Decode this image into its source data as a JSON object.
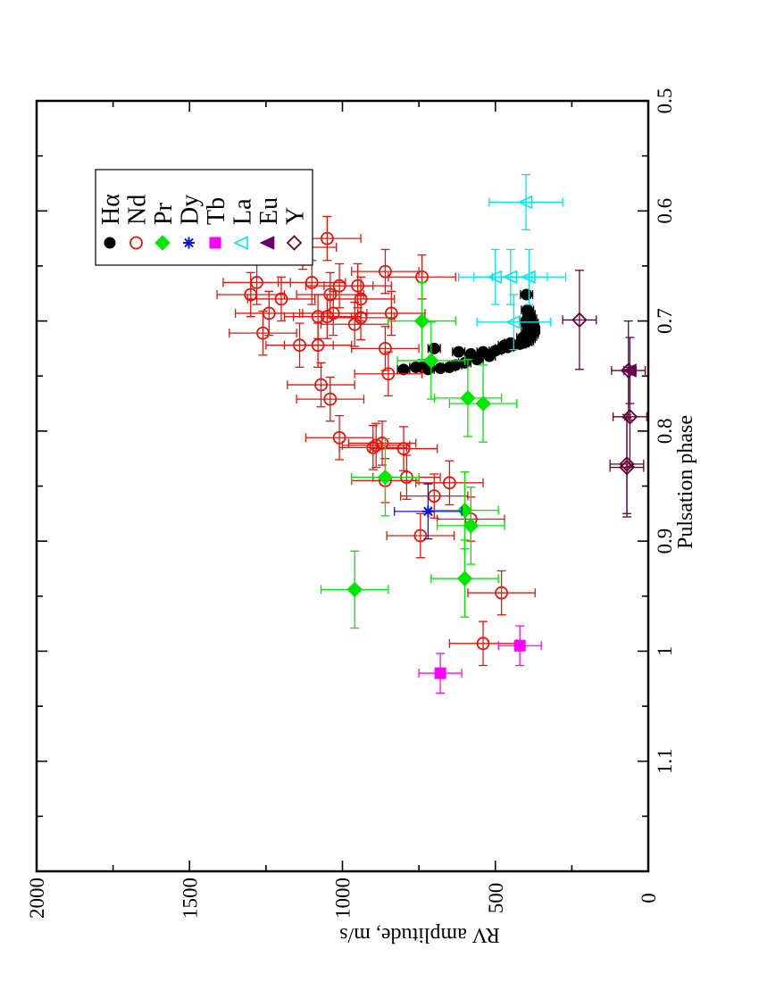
{
  "chart_data": {
    "type": "scatter",
    "title": "",
    "xlabel": "Pulsation phase",
    "ylabel": "RV amplitude, m/s",
    "xlim": [
      0.5,
      1.2
    ],
    "ylim": [
      0,
      2000
    ],
    "x_ticks": [
      "0.5",
      "0.6",
      "0.7",
      "0.8",
      "0.9",
      "1",
      "1.1"
    ],
    "y_ticks": [
      "0",
      "500",
      "1000",
      "1500",
      "2000"
    ],
    "orientation": "rotated 90 degrees counter-clockwise",
    "grid": false,
    "legend_position": "upper-right",
    "series": [
      {
        "name": "Hα",
        "marker": "filled-circle",
        "color": "#000000",
        "points": [
          [
            0.744,
            800
          ],
          [
            0.742,
            760
          ],
          [
            0.744,
            720
          ],
          [
            0.742,
            740
          ],
          [
            0.743,
            680
          ],
          [
            0.742,
            650
          ],
          [
            0.74,
            630
          ],
          [
            0.738,
            600
          ],
          [
            0.735,
            560
          ],
          [
            0.732,
            520
          ],
          [
            0.73,
            580
          ],
          [
            0.728,
            540
          ],
          [
            0.727,
            500
          ],
          [
            0.725,
            480
          ],
          [
            0.724,
            460
          ],
          [
            0.722,
            440
          ],
          [
            0.721,
            420
          ],
          [
            0.72,
            410
          ],
          [
            0.719,
            400
          ],
          [
            0.718,
            395
          ],
          [
            0.716,
            390
          ],
          [
            0.714,
            385
          ],
          [
            0.712,
            380
          ],
          [
            0.71,
            378
          ],
          [
            0.708,
            375
          ],
          [
            0.705,
            378
          ],
          [
            0.702,
            380
          ],
          [
            0.698,
            385
          ],
          [
            0.694,
            390
          ],
          [
            0.69,
            395
          ],
          [
            0.676,
            398
          ],
          [
            0.725,
            700
          ],
          [
            0.728,
            620
          ],
          [
            0.72,
            450
          ],
          [
            0.722,
            470
          ],
          [
            0.715,
            410
          ],
          [
            0.711,
            395
          ],
          [
            0.707,
            390
          ],
          [
            0.703,
            395
          ],
          [
            0.7,
            400
          ]
        ],
        "xerr": 0.003,
        "yerr": 20
      },
      {
        "name": "Nd",
        "marker": "open-circle",
        "color": "#e8140c",
        "points": [
          [
            0.625,
            1050
          ],
          [
            0.633,
            1130
          ],
          [
            0.655,
            860
          ],
          [
            0.66,
            740
          ],
          [
            0.665,
            1280
          ],
          [
            0.665,
            1100
          ],
          [
            0.668,
            1010
          ],
          [
            0.668,
            950
          ],
          [
            0.676,
            1300
          ],
          [
            0.676,
            1040
          ],
          [
            0.68,
            1200
          ],
          [
            0.68,
            940
          ],
          [
            0.693,
            1240
          ],
          [
            0.693,
            1030
          ],
          [
            0.693,
            840
          ],
          [
            0.696,
            1080
          ],
          [
            0.696,
            1050
          ],
          [
            0.697,
            940
          ],
          [
            0.703,
            960
          ],
          [
            0.711,
            1260
          ],
          [
            0.722,
            1140
          ],
          [
            0.722,
            1080
          ],
          [
            0.725,
            860
          ],
          [
            0.748,
            850
          ],
          [
            0.758,
            1070
          ],
          [
            0.771,
            1040
          ],
          [
            0.806,
            1010
          ],
          [
            0.811,
            870
          ],
          [
            0.813,
            890
          ],
          [
            0.815,
            900
          ],
          [
            0.816,
            800
          ],
          [
            0.842,
            790
          ],
          [
            0.845,
            860
          ],
          [
            0.847,
            650
          ],
          [
            0.859,
            700
          ],
          [
            0.88,
            580
          ],
          [
            0.895,
            745
          ],
          [
            0.947,
            480
          ],
          [
            0.993,
            540
          ]
        ],
        "xerr": 0.02,
        "yerr": 110
      },
      {
        "name": "Pr",
        "marker": "filled-diamond",
        "color": "#00e800",
        "points": [
          [
            0.7,
            740
          ],
          [
            0.736,
            710
          ],
          [
            0.77,
            590
          ],
          [
            0.775,
            540
          ],
          [
            0.842,
            860
          ],
          [
            0.872,
            600
          ],
          [
            0.886,
            580
          ],
          [
            0.934,
            600
          ],
          [
            0.944,
            960
          ]
        ],
        "xerr": 0.035,
        "yerr": 110
      },
      {
        "name": "Dy",
        "marker": "asterisk",
        "color": "#1010e0",
        "points": [
          [
            0.873,
            720
          ]
        ],
        "xerr": 0.025,
        "yerr": 110
      },
      {
        "name": "Tb",
        "marker": "filled-square",
        "color": "#ff00ff",
        "points": [
          [
            0.995,
            420
          ],
          [
            1.02,
            680
          ]
        ],
        "xerr": 0.018,
        "yerr": 70
      },
      {
        "name": "La",
        "marker": "open-triangle",
        "color": "#00e8e8",
        "points": [
          [
            0.592,
            400
          ],
          [
            0.66,
            390
          ],
          [
            0.66,
            450
          ],
          [
            0.66,
            500
          ],
          [
            0.701,
            440
          ]
        ],
        "xerr": 0.025,
        "yerr": 120
      },
      {
        "name": "Eu",
        "marker": "filled-triangle",
        "color": "#660066",
        "points": [
          [
            0.745,
            60
          ]
        ],
        "xerr": 0.03,
        "yerr": 20
      },
      {
        "name": "Y",
        "marker": "open-diamond",
        "color": "#660033",
        "points": [
          [
            0.699,
            225
          ],
          [
            0.745,
            65
          ],
          [
            0.787,
            60
          ],
          [
            0.83,
            70
          ],
          [
            0.833,
            70
          ]
        ],
        "xerr": 0.045,
        "yerr": 55
      }
    ]
  }
}
